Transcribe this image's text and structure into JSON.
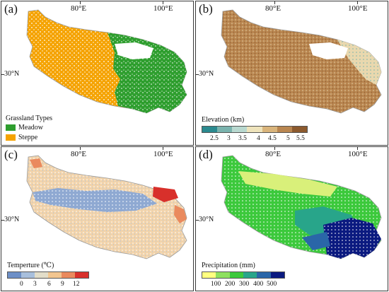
{
  "labels": {
    "lon1": "80°E",
    "lon2": "100°E",
    "lat": "30°N"
  },
  "panels": [
    {
      "id": "a",
      "label": "(a)",
      "legend_title": "Grassland Types",
      "items": [
        {
          "name": "Meadow",
          "color": "#2e9e2e"
        },
        {
          "name": "Steppe",
          "color": "#f5a300"
        }
      ]
    },
    {
      "id": "b",
      "label": "(b)",
      "legend_title": "Elevation (km)",
      "ticks": [
        "2.5",
        "3",
        "3.5",
        "4",
        "4.5",
        "5",
        "5.5"
      ],
      "colors": [
        "#2b8a8f",
        "#7ab3ad",
        "#b8d8cf",
        "#eee3bb",
        "#d9b47b",
        "#b98650",
        "#8c5a2e"
      ]
    },
    {
      "id": "c",
      "label": "(c)",
      "legend_title": "Temperture (℃)",
      "ticks": [
        "0",
        "3",
        "6",
        "9",
        "12"
      ],
      "colors": [
        "#6d8fc7",
        "#a8bfdc",
        "#e2ddc9",
        "#f2c58f",
        "#ea8a5e",
        "#d8302b"
      ]
    },
    {
      "id": "d",
      "label": "(d)",
      "legend_title": "Precipitation (mm)",
      "ticks": [
        "100",
        "200",
        "300",
        "400",
        "500"
      ],
      "colors": [
        "#ffff80",
        "#8ee05f",
        "#3cc93c",
        "#28a58a",
        "#2a66a8",
        "#0b1a80"
      ]
    }
  ]
}
